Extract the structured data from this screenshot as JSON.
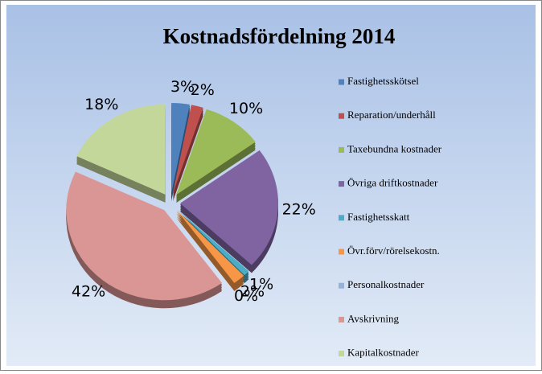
{
  "chart_data": {
    "type": "pie",
    "title": "Kostnadsfördelning 2014",
    "categories": [
      "Fastighetsskötsel",
      "Reparation/underhåll",
      "Taxebundna kostnader",
      "Övriga driftkostnader",
      "Fastighetsskatt",
      "Övr.förv/rörelsekostn.",
      "Personalkostnader",
      "Avskrivning",
      "Kapitalkostnader"
    ],
    "values": [
      3,
      2,
      10,
      22,
      1,
      2,
      0,
      42,
      18
    ],
    "value_labels": [
      "3%",
      "2%",
      "10%",
      "22%",
      "1%",
      "2%",
      "0%",
      "42%",
      "18%"
    ],
    "colors": [
      "#4f81bd",
      "#c0504d",
      "#9bbb59",
      "#8064a2",
      "#4bacc6",
      "#f79646",
      "#95b3d7",
      "#da9694",
      "#c4d79b"
    ],
    "legend": "right"
  }
}
